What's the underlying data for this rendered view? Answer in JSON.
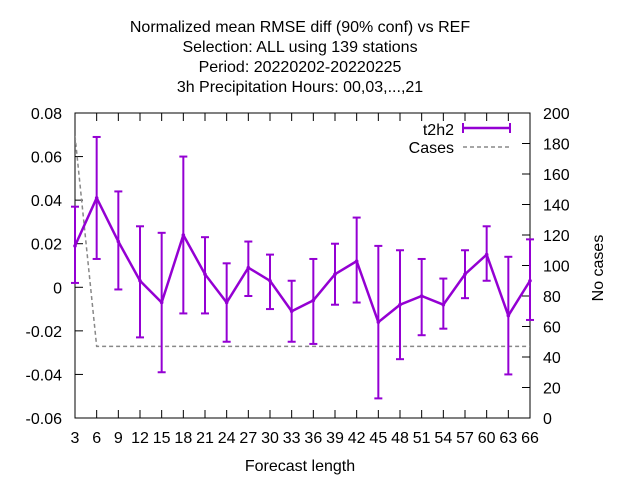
{
  "chart_data": {
    "type": "line",
    "title_lines": [
      "Normalized mean RMSE diff (90% conf) vs REF",
      "Selection: ALL using   139 stations",
      "Period: 20220202-20220225",
      "3h Precipitation   Hours:  00,03,...,21"
    ],
    "xlabel": "Forecast length",
    "ylabel": "",
    "y2label": "No cases",
    "ylim": [
      -0.06,
      0.08
    ],
    "y2lim": [
      0,
      200
    ],
    "yticks": [
      "0.08",
      "0.06",
      "0.04",
      "0.02",
      "0",
      "-0.02",
      "-0.04",
      "-0.06"
    ],
    "y2ticks": [
      "200",
      "180",
      "160",
      "140",
      "120",
      "100",
      "80",
      "60",
      "40",
      "20",
      "0"
    ],
    "x": [
      3,
      6,
      9,
      12,
      15,
      18,
      21,
      24,
      27,
      30,
      33,
      36,
      39,
      42,
      45,
      48,
      51,
      54,
      57,
      60,
      63,
      66
    ],
    "series": [
      {
        "name": "t2h2",
        "color": "#9400d3",
        "values": [
          0.019,
          0.041,
          0.021,
          0.003,
          -0.007,
          0.024,
          0.006,
          -0.007,
          0.009,
          0.003,
          -0.011,
          -0.006,
          0.006,
          0.012,
          -0.016,
          -0.008,
          -0.004,
          -0.008,
          0.006,
          0.015,
          -0.013,
          0.003
        ],
        "err_low": [
          0.002,
          0.013,
          -0.001,
          -0.023,
          -0.039,
          -0.012,
          -0.012,
          -0.025,
          -0.004,
          -0.01,
          -0.025,
          -0.026,
          -0.008,
          -0.007,
          -0.051,
          -0.033,
          -0.022,
          -0.019,
          -0.005,
          0.003,
          -0.04,
          -0.015
        ],
        "err_high": [
          0.037,
          0.069,
          0.044,
          0.028,
          0.025,
          0.06,
          0.023,
          0.011,
          0.021,
          0.015,
          0.003,
          0.013,
          0.02,
          0.032,
          0.019,
          0.017,
          0.013,
          0.004,
          0.017,
          0.028,
          0.014,
          0.022
        ]
      },
      {
        "name": "Cases",
        "axis": "y2",
        "color": "#888888",
        "dashed": true,
        "values": [
          185,
          47,
          47,
          47,
          47,
          47,
          47,
          47,
          47,
          47,
          47,
          47,
          47,
          47,
          47,
          47,
          47,
          47,
          47,
          47,
          47,
          47
        ]
      }
    ],
    "legend": "top-right"
  }
}
